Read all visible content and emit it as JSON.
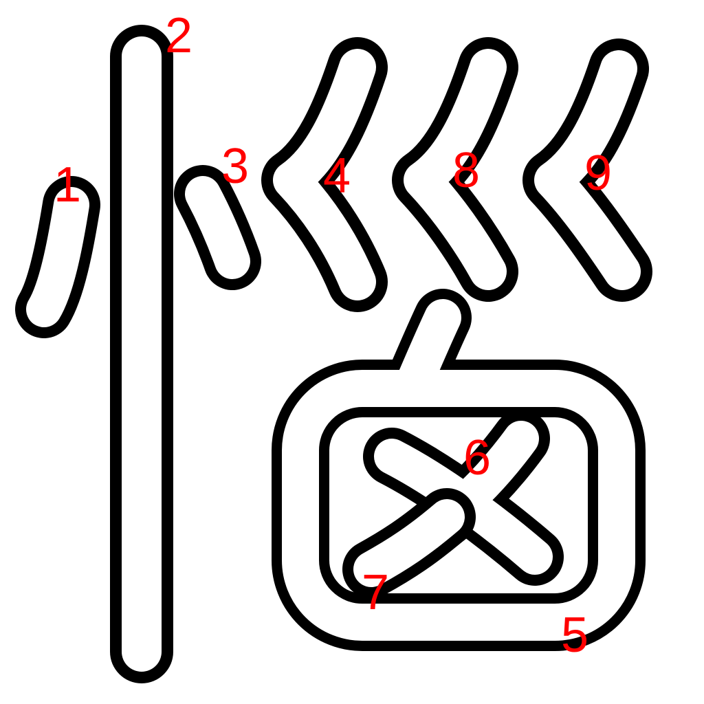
{
  "diagram": {
    "type": "stroke-order",
    "stroke_color": "#000000",
    "fill_color": "#ffffff",
    "number_color": "#ff0000",
    "strokes": [
      {
        "order": 1,
        "label": "1"
      },
      {
        "order": 2,
        "label": "2"
      },
      {
        "order": 3,
        "label": "3"
      },
      {
        "order": 4,
        "label": "4"
      },
      {
        "order": 5,
        "label": "5"
      },
      {
        "order": 6,
        "label": "6"
      },
      {
        "order": 7,
        "label": "7"
      },
      {
        "order": 8,
        "label": "8"
      },
      {
        "order": 9,
        "label": "9"
      }
    ]
  }
}
